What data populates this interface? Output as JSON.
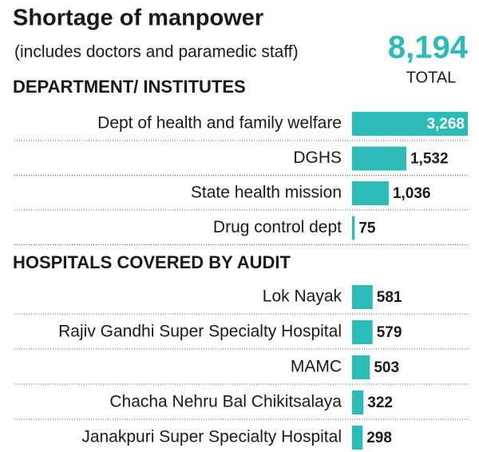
{
  "chart_data": {
    "type": "bar",
    "title": "Shortage of manpower",
    "subtitle": "(includes doctors and paramedic staff)",
    "total": {
      "value": 8194,
      "label": "8,194",
      "caption": "TOTAL"
    },
    "color": "#2bbcb7",
    "groups": [
      {
        "name": "DEPARTMENT/ INSTITUTES",
        "categories": [
          "Dept of health and family welfare",
          "DGHS",
          "State health mission",
          "Drug control dept"
        ],
        "values": [
          3268,
          1532,
          1036,
          75
        ],
        "value_labels": [
          "3,268",
          "1,532",
          "1,036",
          "75"
        ]
      },
      {
        "name": "HOSPITALS COVERED BY AUDIT",
        "categories": [
          "Lok Nayak",
          "Rajiv Gandhi Super Specialty Hospital",
          "MAMC",
          "Chacha Nehru Bal Chikitsalaya",
          "Janakpuri Super Specialty Hospital"
        ],
        "values": [
          581,
          579,
          503,
          322,
          298
        ],
        "value_labels": [
          "581",
          "579",
          "503",
          "322",
          "298"
        ]
      }
    ]
  }
}
